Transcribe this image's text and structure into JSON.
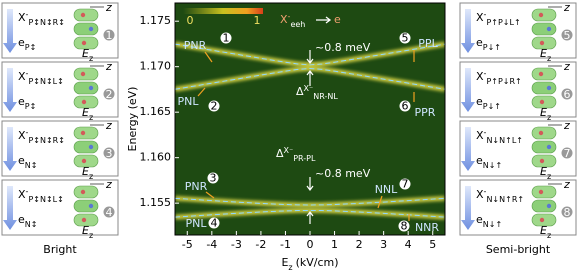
{
  "chart_data": {
    "type": "line",
    "y_label": "Energy (eV)",
    "x_label": "E",
    "x_label_sub": "z",
    "x_label_unit": "(kV/cm)",
    "x": [
      -5.5,
      -5,
      -4,
      -3,
      -2,
      -1,
      -0.5,
      0,
      0.5,
      1,
      2,
      3,
      4,
      5,
      5.5
    ],
    "series": [
      {
        "color": "#e8e04a",
        "values": [
          1.17248,
          1.17226,
          1.17181,
          1.17137,
          1.17092,
          1.17049,
          1.1703,
          1.1702,
          1.1703,
          1.17049,
          1.17092,
          1.17137,
          1.17181,
          1.17226,
          1.17248
        ]
      },
      {
        "color": "#e8e04a",
        "values": [
          1.16752,
          1.16774,
          1.16819,
          1.16863,
          1.16908,
          1.16951,
          1.1697,
          1.1698,
          1.1697,
          1.16951,
          1.16908,
          1.16863,
          1.16819,
          1.16774,
          1.16752
        ]
      },
      {
        "color": "#e8e04a",
        "values": [
          1.15553,
          1.15545,
          1.15528,
          1.15512,
          1.15497,
          1.15485,
          1.15481,
          1.1548,
          1.15481,
          1.15485,
          1.15497,
          1.15512,
          1.15528,
          1.15545,
          1.15553
        ]
      },
      {
        "color": "#e8e04a",
        "values": [
          1.15347,
          1.15355,
          1.15372,
          1.15388,
          1.15403,
          1.15415,
          1.15419,
          1.1542,
          1.15419,
          1.15415,
          1.15403,
          1.15388,
          1.15372,
          1.15355,
          1.15347
        ]
      }
    ],
    "dash_color": "#8fd8ff",
    "background": "#1e4a12",
    "xlim": [
      -5.5,
      5.5
    ],
    "xticks": [
      -5,
      -4,
      -3,
      -2,
      -1,
      0,
      1,
      2,
      3,
      4,
      5
    ],
    "ylim": [
      1.1515,
      1.177
    ],
    "yticks": [
      1.155,
      {
        "value": 1.16,
        "label": "1.160"
      },
      1.165,
      {
        "value": 1.17,
        "label": "1.170"
      },
      1.175
    ],
    "colorbar_min": "0",
    "colorbar_max": "1",
    "process": {
      "initial": "X",
      "charge": "-",
      "initial_sub": "eeh",
      "final": "e"
    },
    "annotations": [
      "PNR",
      "PNL",
      "PPL",
      "PPR",
      "PNR",
      "PNL",
      "NNL",
      "NNR"
    ],
    "markers": [
      "1",
      "2",
      "5",
      "6",
      "3",
      "4",
      "7",
      "8"
    ],
    "splitting_labels": [
      "~0.8 meV",
      "~0.8 meV"
    ],
    "gaps": [
      {
        "main": "Δ",
        "sup": "X⁻",
        "sub": "NR-NL"
      },
      {
        "main": "Δ",
        "sup": "X⁻",
        "sub": "PR-PL"
      }
    ]
  },
  "left_panels": {
    "caption": "Bright",
    "panels": [
      {
        "initial": "X",
        "charge": "-",
        "initial_sub": "P↕N↕R↕",
        "final": "e",
        "final_sub": "P↕",
        "axis": "z",
        "field": "E",
        "field_sub": "z",
        "number": "1"
      },
      {
        "initial": "X",
        "charge": "-",
        "initial_sub": "P↕N↕L↕",
        "final": "e",
        "final_sub": "P↕",
        "axis": "z",
        "field": "E",
        "field_sub": "z",
        "number": "2"
      },
      {
        "initial": "X",
        "charge": "-",
        "initial_sub": "P↕N↕R↕",
        "final": "e",
        "final_sub": "N↕",
        "axis": "z",
        "field": "E",
        "field_sub": "z",
        "number": "3"
      },
      {
        "initial": "X",
        "charge": "-",
        "initial_sub": "P↕N↕L↕",
        "final": "e",
        "final_sub": "N↕",
        "axis": "z",
        "field": "E",
        "field_sub": "z",
        "number": "4"
      }
    ]
  },
  "right_panels": {
    "caption": "Semi-bright",
    "panels": [
      {
        "initial": "X",
        "charge": "-",
        "initial_sub": "P↑P↓L↑",
        "final": "e",
        "final_sub": "P↓↑",
        "axis": "z",
        "field": "E",
        "field_sub": "z",
        "number": "5"
      },
      {
        "initial": "X",
        "charge": "-",
        "initial_sub": "P↑P↓R↑",
        "final": "e",
        "final_sub": "P↓↑",
        "axis": "z",
        "field": "E",
        "field_sub": "z",
        "number": "6"
      },
      {
        "initial": "X",
        "charge": "-",
        "initial_sub": "N↓N↑L↑",
        "final": "e",
        "final_sub": "N↓↑",
        "axis": "z",
        "field": "E",
        "field_sub": "z",
        "number": "7"
      },
      {
        "initial": "X",
        "charge": "-",
        "initial_sub": "N↓N↑R↑",
        "final": "e",
        "final_sub": "N↓↑",
        "axis": "z",
        "field": "E",
        "field_sub": "z",
        "number": "8"
      }
    ]
  }
}
